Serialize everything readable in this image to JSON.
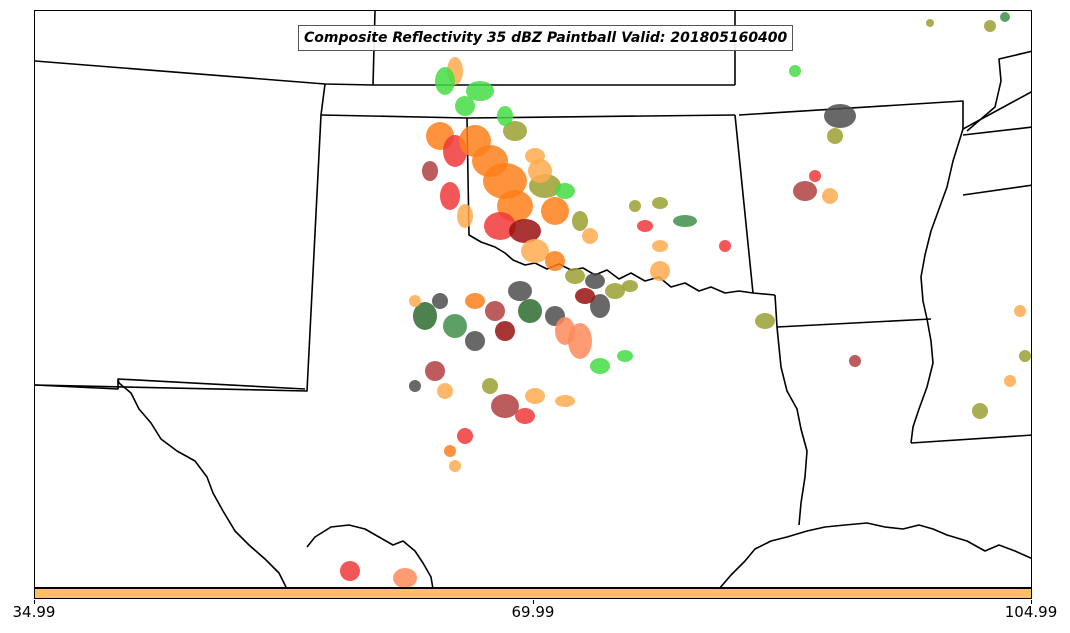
{
  "title": "Composite Reflectivity 35 dBZ Paintball Valid: 201805160400",
  "colorbar": {
    "color": "#ffbf66",
    "ticks": [
      "34.99",
      "69.99",
      "104.99"
    ]
  },
  "map": {
    "state_boundary_color": "#000000",
    "background": "#ffffff"
  },
  "palette": {
    "red": "#f03838",
    "darkred": "#9a1010",
    "orange": "#ff7f1a",
    "lightorange": "#ffab50",
    "salmon": "#ff8a5a",
    "green": "#44dd44",
    "darkgreen": "#2e6b2e",
    "midgreen": "#3f8f4a",
    "olive": "#9aa032",
    "gray": "#4d4d4d",
    "rosybrown": "#b04040"
  }
}
